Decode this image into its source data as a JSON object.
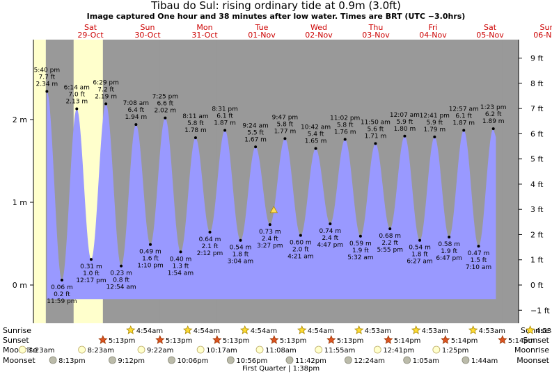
{
  "title": "Tibau do Sul: rising  ordinary tide at 0.9m (3.0ft)",
  "subtitle": "Image captured One hour and 38 minutes after low water. Times are BRT (UTC −3.0hrs)",
  "colors": {
    "day": "#ffffcc",
    "night": "#999999",
    "tide": "#9999ff",
    "date_text": "#cc0000",
    "marker": "#ffdd55"
  },
  "days": [
    {
      "dow": "Sat",
      "date": "29-Oct"
    },
    {
      "dow": "Sun",
      "date": "30-Oct"
    },
    {
      "dow": "Mon",
      "date": "31-Oct"
    },
    {
      "dow": "Tue",
      "date": "01-Nov"
    },
    {
      "dow": "Wed",
      "date": "02-Nov"
    },
    {
      "dow": "Thu",
      "date": "03-Nov"
    },
    {
      "dow": "Fri",
      "date": "04-Nov"
    },
    {
      "dow": "Sat",
      "date": "05-Nov"
    },
    {
      "dow": "Sun",
      "date": "06-Nov"
    }
  ],
  "chart_data": {
    "type": "area",
    "x_unit": "hours after 28-Oct 00:00 BRT",
    "y_unit": "m",
    "ylim": [
      -0.47,
      2.99
    ],
    "y_ticks_m": [
      {
        "v": 0,
        "label": "0 m"
      },
      {
        "v": 1,
        "label": "1 m"
      },
      {
        "v": 2,
        "label": "2 m"
      }
    ],
    "y_ticks_ft": [
      {
        "v": -1,
        "label": "−1 ft"
      },
      {
        "v": 0,
        "label": "0 ft"
      },
      {
        "v": 1,
        "label": "1 ft"
      },
      {
        "v": 2,
        "label": "2 ft"
      },
      {
        "v": 3,
        "label": "3 ft"
      },
      {
        "v": 4,
        "label": "4 ft"
      },
      {
        "v": 5,
        "label": "5 ft"
      },
      {
        "v": 6,
        "label": "6 ft"
      },
      {
        "v": 7,
        "label": "7 ft"
      },
      {
        "v": 8,
        "label": "8 ft"
      },
      {
        "v": 9,
        "label": "9 ft"
      }
    ],
    "tides": [
      {
        "t": 17.67,
        "m": 2.34,
        "ft": "7.7 ft",
        "m_label": "2.34 m",
        "time": "5:40 pm",
        "type": "high"
      },
      {
        "t": 23.98,
        "m": 0.06,
        "ft": "0.2 ft",
        "m_label": "0.06 m",
        "time": "11:59 pm",
        "type": "low"
      },
      {
        "t": 30.23,
        "m": 2.13,
        "ft": "7.0 ft",
        "m_label": "2.13 m",
        "time": "6:14 am",
        "type": "high"
      },
      {
        "t": 36.28,
        "m": 0.31,
        "ft": "1.0 ft",
        "m_label": "0.31 m",
        "time": "12:17 pm",
        "type": "low"
      },
      {
        "t": 42.48,
        "m": 2.19,
        "ft": "7.2 ft",
        "m_label": "2.19 m",
        "time": "6:29 pm",
        "type": "high"
      },
      {
        "t": 48.9,
        "m": 0.23,
        "ft": "0.8 ft",
        "m_label": "0.23 m",
        "time": "12:54 am",
        "type": "low"
      },
      {
        "t": 55.13,
        "m": 1.94,
        "ft": "6.4 ft",
        "m_label": "1.94 m",
        "time": "7:08 am",
        "type": "high"
      },
      {
        "t": 61.17,
        "m": 0.49,
        "ft": "1.6 ft",
        "m_label": "0.49 m",
        "time": "1:10 pm",
        "type": "low"
      },
      {
        "t": 67.42,
        "m": 2.02,
        "ft": "6.6 ft",
        "m_label": "2.02 m",
        "time": "7:25 pm",
        "type": "high"
      },
      {
        "t": 73.9,
        "m": 0.4,
        "ft": "1.3 ft",
        "m_label": "0.40 m",
        "time": "1:54 am",
        "type": "low"
      },
      {
        "t": 80.18,
        "m": 1.78,
        "ft": "5.8 ft",
        "m_label": "1.78 m",
        "time": "8:11 am",
        "type": "high"
      },
      {
        "t": 86.2,
        "m": 0.64,
        "ft": "2.1 ft",
        "m_label": "0.64 m",
        "time": "2:12 pm",
        "type": "low"
      },
      {
        "t": 92.52,
        "m": 1.87,
        "ft": "6.1 ft",
        "m_label": "1.87 m",
        "time": "8:31 pm",
        "type": "high"
      },
      {
        "t": 99.07,
        "m": 0.54,
        "ft": "1.8 ft",
        "m_label": "0.54 m",
        "time": "3:04 am",
        "type": "low"
      },
      {
        "t": 105.4,
        "m": 1.67,
        "ft": "5.5 ft",
        "m_label": "1.67 m",
        "time": "9:24 am",
        "type": "high"
      },
      {
        "t": 111.45,
        "m": 0.73,
        "ft": "2.4 ft",
        "m_label": "0.73 m",
        "time": "3:27 pm",
        "type": "low"
      },
      {
        "t": 117.78,
        "m": 1.77,
        "ft": "5.8 ft",
        "m_label": "1.77 m",
        "time": "9:47 pm",
        "type": "high"
      },
      {
        "t": 124.35,
        "m": 0.6,
        "ft": "2.0 ft",
        "m_label": "0.60 m",
        "time": "4:21 am",
        "type": "low"
      },
      {
        "t": 130.7,
        "m": 1.65,
        "ft": "5.4 ft",
        "m_label": "1.65 m",
        "time": "10:42 am",
        "type": "high"
      },
      {
        "t": 136.78,
        "m": 0.74,
        "ft": "2.4 ft",
        "m_label": "0.74 m",
        "time": "4:47 pm",
        "type": "low"
      },
      {
        "t": 143.03,
        "m": 1.76,
        "ft": "5.8 ft",
        "m_label": "1.76 m",
        "time": "11:02 pm",
        "type": "high"
      },
      {
        "t": 149.53,
        "m": 0.59,
        "ft": "1.9 ft",
        "m_label": "0.59 m",
        "time": "5:32 am",
        "type": "low"
      },
      {
        "t": 155.83,
        "m": 1.71,
        "ft": "5.6 ft",
        "m_label": "1.71 m",
        "time": "11:50 am",
        "type": "high"
      },
      {
        "t": 161.92,
        "m": 0.68,
        "ft": "2.2 ft",
        "m_label": "0.68 m",
        "time": "5:55 pm",
        "type": "low"
      },
      {
        "t": 168.12,
        "m": 1.8,
        "ft": "5.9 ft",
        "m_label": "1.80 m",
        "time": "12:07 am",
        "type": "high"
      },
      {
        "t": 174.45,
        "m": 0.54,
        "ft": "1.8 ft",
        "m_label": "0.54 m",
        "time": "6:27 am",
        "type": "low"
      },
      {
        "t": 180.68,
        "m": 1.79,
        "ft": "5.9 ft",
        "m_label": "1.79 m",
        "time": "12:41 pm",
        "type": "high"
      },
      {
        "t": 186.78,
        "m": 0.58,
        "ft": "1.9 ft",
        "m_label": "0.58 m",
        "time": "6:47 pm",
        "type": "low"
      },
      {
        "t": 192.95,
        "m": 1.87,
        "ft": "6.1 ft",
        "m_label": "1.87 m",
        "time": "12:57 am",
        "type": "high"
      },
      {
        "t": 199.17,
        "m": 0.47,
        "ft": "1.5 ft",
        "m_label": "0.47 m",
        "time": "7:10 am",
        "type": "low"
      },
      {
        "t": 205.38,
        "m": 1.89,
        "ft": "6.2 ft",
        "m_label": "1.89 m",
        "time": "1:23 pm",
        "type": "high"
      }
    ],
    "current": {
      "t": 113.08,
      "m": 0.9
    }
  },
  "almanac": {
    "row_labels": {
      "sunrise": "Sunrise",
      "sunset": "Sunset",
      "moonrise": "Moonrise",
      "moonset": "Moonset"
    },
    "sunrise": [
      {
        "t": 52.9,
        "label": "4:54am"
      },
      {
        "t": 76.9,
        "label": "4:54am"
      },
      {
        "t": 100.9,
        "label": "4:54am"
      },
      {
        "t": 124.9,
        "label": "4:54am"
      },
      {
        "t": 148.88,
        "label": "4:53am"
      },
      {
        "t": 172.88,
        "label": "4:53am"
      },
      {
        "t": 196.88,
        "label": "4:53am"
      },
      {
        "t": 220.88,
        "label": "4:53am"
      }
    ],
    "sunset": [
      {
        "t": 41.22,
        "label": "5:13pm"
      },
      {
        "t": 65.22,
        "label": "5:13pm"
      },
      {
        "t": 89.22,
        "label": "5:13pm"
      },
      {
        "t": 113.22,
        "label": "5:13pm"
      },
      {
        "t": 137.22,
        "label": "5:13pm"
      },
      {
        "t": 161.23,
        "label": "5:14pm"
      },
      {
        "t": 185.23,
        "label": "5:14pm"
      },
      {
        "t": 209.23,
        "label": "5:14pm"
      }
    ],
    "moonrise": [
      {
        "t": 7.38,
        "label": "7:23am"
      },
      {
        "t": 32.38,
        "label": "8:23am"
      },
      {
        "t": 57.37,
        "label": "9:22am"
      },
      {
        "t": 82.28,
        "label": "10:17am"
      },
      {
        "t": 107.13,
        "label": "11:08am"
      },
      {
        "t": 131.92,
        "label": "11:55am"
      },
      {
        "t": 156.68,
        "label": "12:41pm"
      },
      {
        "t": 181.42,
        "label": "1:25pm"
      }
    ],
    "moonset": [
      {
        "t": 20.22,
        "label": "8:13pm"
      },
      {
        "t": 45.2,
        "label": "9:12pm"
      },
      {
        "t": 70.1,
        "label": "10:06pm"
      },
      {
        "t": 94.93,
        "label": "10:56pm"
      },
      {
        "t": 119.7,
        "label": "11:42pm"
      },
      {
        "t": 144.4,
        "label": "12:24am"
      },
      {
        "t": 169.08,
        "label": "1:05am"
      },
      {
        "t": 193.73,
        "label": "1:44am"
      }
    ],
    "phase": {
      "t": 109.63,
      "label": "First Quarter | 1:38pm"
    }
  }
}
